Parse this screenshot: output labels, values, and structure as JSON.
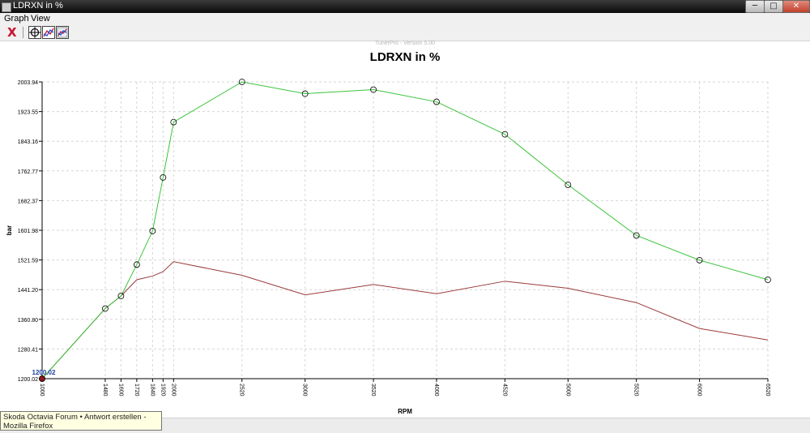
{
  "window": {
    "title": "LDRXN in %",
    "min_label": "─",
    "max_label": "□",
    "close_label": "✕"
  },
  "menu": {
    "items": [
      "Graph",
      "View"
    ]
  },
  "toolbar": {
    "close_label": "X"
  },
  "tooltip": {
    "text": "Skoda Octavia Forum • Antwort erstellen - Mozilla Firefox"
  },
  "chart_data": {
    "type": "line",
    "title": "LDRXN in %",
    "subtitle": "TunerPro - Version 5.00",
    "xlabel": "RPM",
    "ylabel": "bar",
    "x": [
      1000,
      1480,
      1600,
      1720,
      1840,
      1920,
      2000,
      2520,
      3000,
      3520,
      4000,
      4520,
      5000,
      5520,
      6000,
      6520
    ],
    "y_ticks": [
      "1200.02",
      "1280.41",
      "1360.80",
      "1441.20",
      "1521.59",
      "1601.98",
      "1682.37",
      "1762.77",
      "1843.16",
      "1923.55",
      "2003.94"
    ],
    "ylim": [
      1200.02,
      2003.94
    ],
    "grid": true,
    "selected_point_label": "1200.02",
    "series": [
      {
        "values": [
          1200.02,
          1390,
          1424,
          1509,
          1600,
          1745,
          1895,
          2003.94,
          1972,
          1983,
          1950,
          1862,
          1725,
          1588,
          1521,
          1468
        ],
        "color": "#3cc43c",
        "markers": true
      },
      {
        "values": [
          1200.02,
          1390,
          1424,
          1468,
          1478,
          1490,
          1517,
          1480,
          1427,
          1455,
          1430,
          1464,
          1445,
          1406,
          1336,
          1305
        ],
        "color": "#9a3a3a",
        "markers": false
      }
    ]
  }
}
